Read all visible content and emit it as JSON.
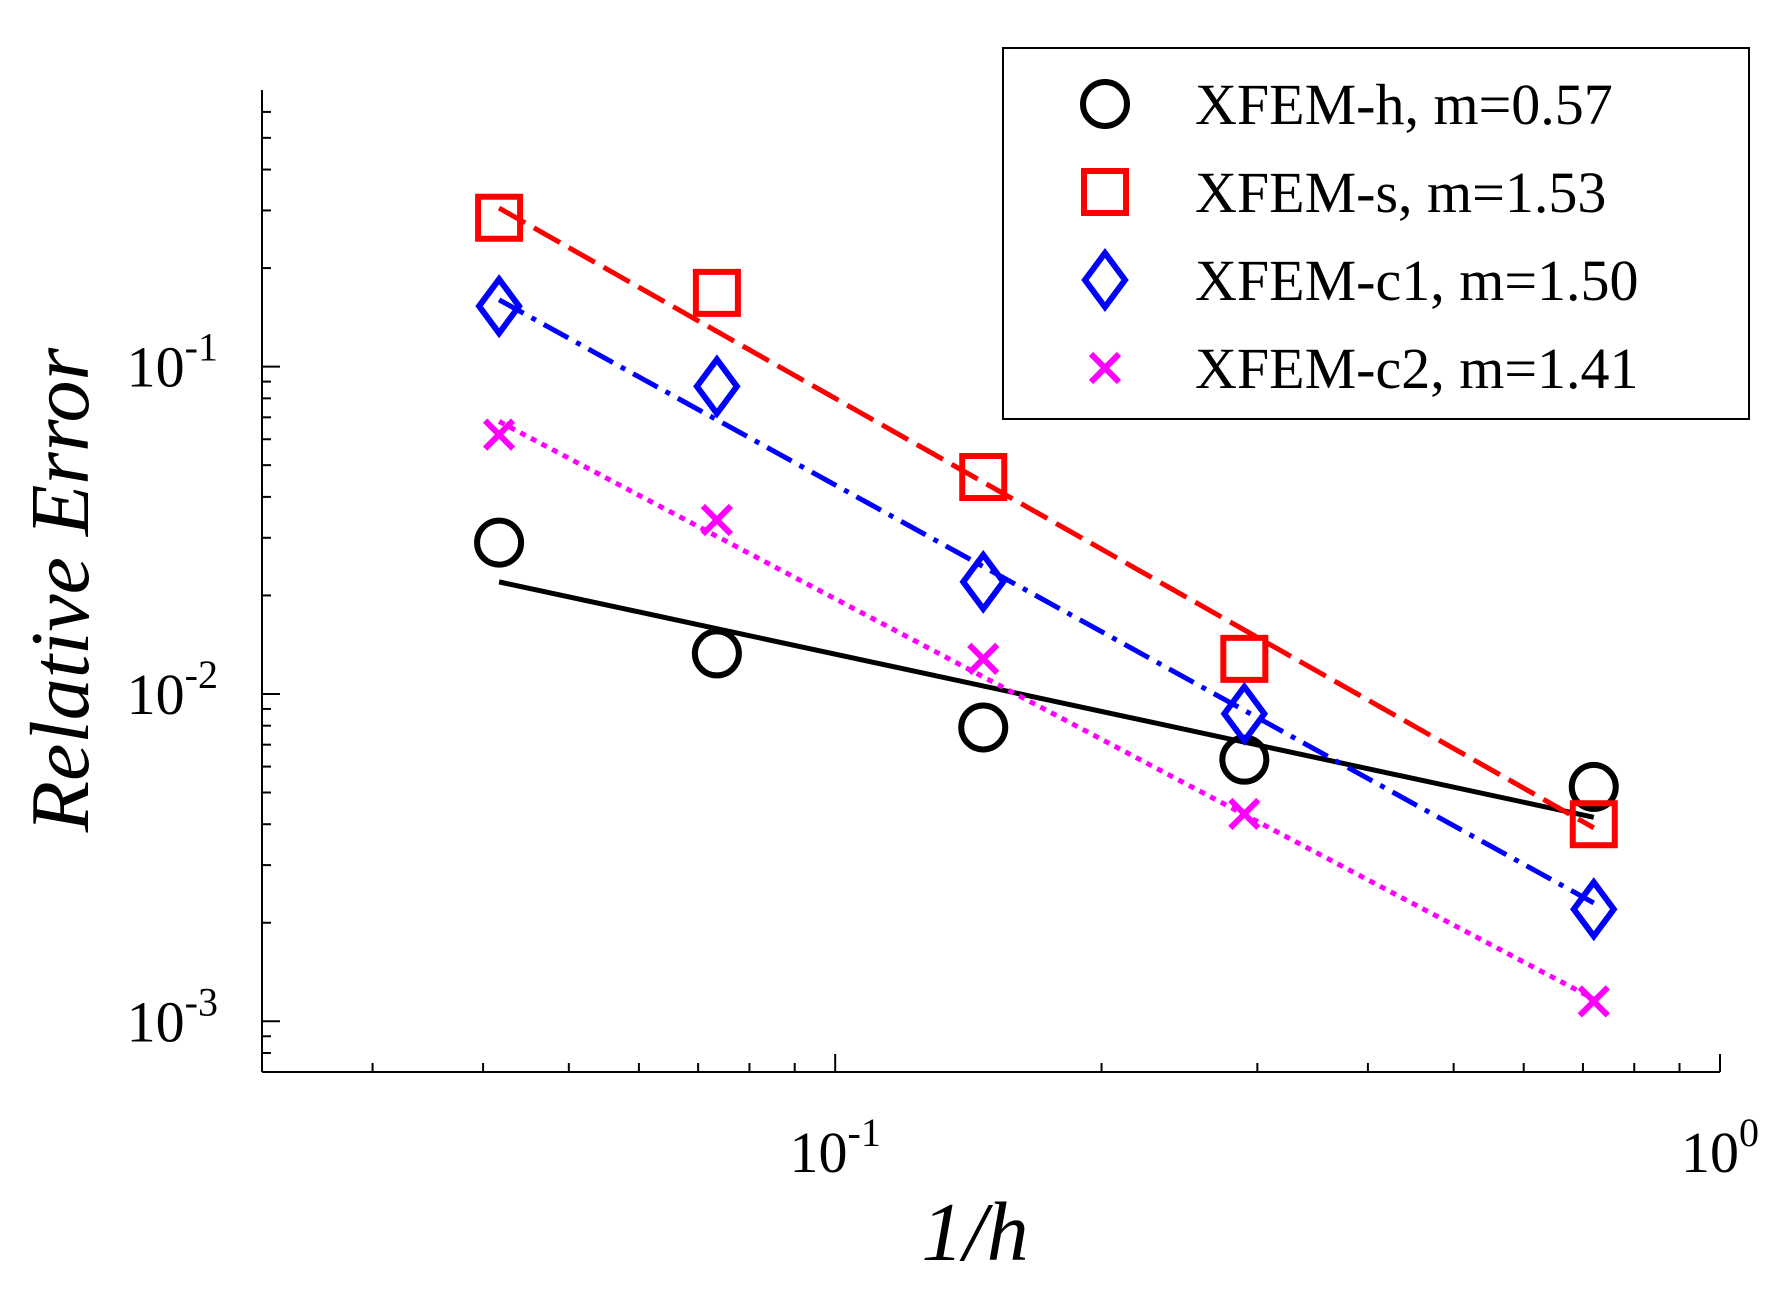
{
  "chart_data": {
    "type": "scatter",
    "xscale": "log",
    "yscale": "log",
    "xlabel": "1/h",
    "ylabel": "Relative Error",
    "xlim": [
      0.0225,
      1.0
    ],
    "ylim": [
      0.0007,
      0.7
    ],
    "grid": false,
    "legend_position": "top-right",
    "x_ticks": [
      {
        "value": 0.1,
        "base": "10",
        "exp": "-1"
      },
      {
        "value": 1.0,
        "base": "10",
        "exp": "0"
      }
    ],
    "y_ticks": [
      {
        "value": 0.001,
        "base": "10",
        "exp": "-3"
      },
      {
        "value": 0.01,
        "base": "10",
        "exp": "-2"
      },
      {
        "value": 0.1,
        "base": "10",
        "exp": "-1"
      }
    ],
    "x": [
      0.0417,
      0.0735,
      0.147,
      0.29,
      0.72
    ],
    "series": [
      {
        "name": "XFEM-h, m=0.57",
        "slope": 0.57,
        "marker": "circle",
        "line": "solid",
        "color": "#000000",
        "values": [
          0.029,
          0.0133,
          0.0079,
          0.0063,
          0.0052
        ],
        "fit_x": [
          0.0417,
          0.72
        ],
        "fit_y": [
          0.022,
          0.0042
        ]
      },
      {
        "name": "XFEM-s, m=1.53",
        "slope": 1.53,
        "marker": "square",
        "line": "dashed",
        "color": "#ff0000",
        "values": [
          0.285,
          0.168,
          0.046,
          0.0128,
          0.004
        ],
        "fit_x": [
          0.0417,
          0.72
        ],
        "fit_y": [
          0.305,
          0.0039
        ]
      },
      {
        "name": "XFEM-c1, m=1.50",
        "slope": 1.5,
        "marker": "diamond",
        "line": "dashdot",
        "color": "#0000ff",
        "values": [
          0.153,
          0.087,
          0.022,
          0.0087,
          0.0022
        ],
        "fit_x": [
          0.0417,
          0.72
        ],
        "fit_y": [
          0.16,
          0.0023
        ]
      },
      {
        "name": "XFEM-c2, m=1.41",
        "slope": 1.41,
        "marker": "x",
        "line": "dotted",
        "color": "#ff00ff",
        "values": [
          0.062,
          0.034,
          0.0128,
          0.0043,
          0.00115
        ],
        "fit_x": [
          0.0417,
          0.72
        ],
        "fit_y": [
          0.068,
          0.00117
        ]
      }
    ]
  }
}
